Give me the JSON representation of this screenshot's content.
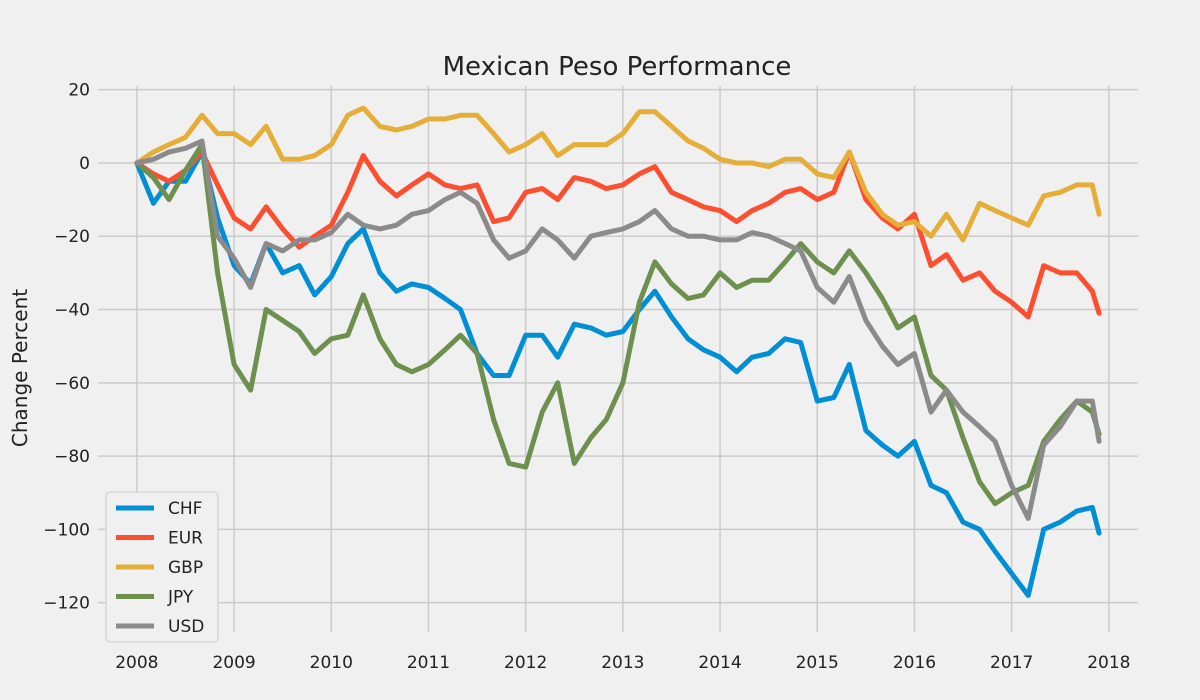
{
  "chart_data": {
    "type": "line",
    "title": "Mexican Peso Performance",
    "xlabel": "",
    "ylabel": "Change Percent",
    "xlim": [
      2007.6,
      2018.3
    ],
    "ylim": [
      -128,
      21
    ],
    "x_ticks": [
      2008,
      2009,
      2010,
      2011,
      2012,
      2013,
      2014,
      2015,
      2016,
      2017,
      2018
    ],
    "y_ticks": [
      20,
      0,
      -20,
      -40,
      -60,
      -80,
      -100,
      -120
    ],
    "grid": true,
    "legend_position": "lower-left",
    "series": [
      {
        "name": "CHF",
        "color": "#008fd5",
        "x": [
          2008.0,
          2008.17,
          2008.33,
          2008.5,
          2008.67,
          2008.83,
          2009.0,
          2009.17,
          2009.33,
          2009.5,
          2009.67,
          2009.83,
          2010.0,
          2010.17,
          2010.33,
          2010.5,
          2010.67,
          2010.83,
          2011.0,
          2011.17,
          2011.33,
          2011.5,
          2011.67,
          2011.83,
          2012.0,
          2012.17,
          2012.33,
          2012.5,
          2012.67,
          2012.83,
          2013.0,
          2013.17,
          2013.33,
          2013.5,
          2013.67,
          2013.83,
          2014.0,
          2014.17,
          2014.33,
          2014.5,
          2014.67,
          2014.83,
          2015.0,
          2015.17,
          2015.33,
          2015.5,
          2015.67,
          2015.83,
          2016.0,
          2016.17,
          2016.33,
          2016.5,
          2016.67,
          2016.83,
          2017.0,
          2017.17,
          2017.33,
          2017.5,
          2017.67,
          2017.83,
          2017.9
        ],
        "values": [
          0,
          -11,
          -5,
          -5,
          3,
          -15,
          -28,
          -33,
          -22,
          -30,
          -28,
          -36,
          -31,
          -22,
          -18,
          -30,
          -35,
          -33,
          -34,
          -37,
          -40,
          -52,
          -58,
          -58,
          -47,
          -47,
          -53,
          -44,
          -45,
          -47,
          -46,
          -40,
          -35,
          -42,
          -48,
          -51,
          -53,
          -57,
          -53,
          -52,
          -48,
          -49,
          -65,
          -64,
          -55,
          -73,
          -77,
          -80,
          -76,
          -88,
          -90,
          -98,
          -100,
          -106,
          -112,
          -118,
          -100,
          -98,
          -95,
          -94,
          -101
        ]
      },
      {
        "name": "EUR",
        "color": "#fc4f30",
        "x": [
          2008.0,
          2008.17,
          2008.33,
          2008.5,
          2008.67,
          2008.83,
          2009.0,
          2009.17,
          2009.33,
          2009.5,
          2009.67,
          2009.83,
          2010.0,
          2010.17,
          2010.33,
          2010.5,
          2010.67,
          2010.83,
          2011.0,
          2011.17,
          2011.33,
          2011.5,
          2011.67,
          2011.83,
          2012.0,
          2012.17,
          2012.33,
          2012.5,
          2012.67,
          2012.83,
          2013.0,
          2013.17,
          2013.33,
          2013.5,
          2013.67,
          2013.83,
          2014.0,
          2014.17,
          2014.33,
          2014.5,
          2014.67,
          2014.83,
          2015.0,
          2015.17,
          2015.33,
          2015.5,
          2015.67,
          2015.83,
          2016.0,
          2016.17,
          2016.33,
          2016.5,
          2016.67,
          2016.83,
          2017.0,
          2017.17,
          2017.33,
          2017.5,
          2017.67,
          2017.83,
          2017.9
        ],
        "values": [
          0,
          -3,
          -5,
          -2,
          3,
          -6,
          -15,
          -18,
          -12,
          -18,
          -23,
          -20,
          -17,
          -8,
          2,
          -5,
          -9,
          -6,
          -3,
          -6,
          -7,
          -6,
          -16,
          -15,
          -8,
          -7,
          -10,
          -4,
          -5,
          -7,
          -6,
          -3,
          -1,
          -8,
          -10,
          -12,
          -13,
          -16,
          -13,
          -11,
          -8,
          -7,
          -10,
          -8,
          3,
          -10,
          -15,
          -18,
          -14,
          -28,
          -25,
          -32,
          -30,
          -35,
          -38,
          -42,
          -28,
          -30,
          -30,
          -35,
          -41
        ]
      },
      {
        "name": "GBP",
        "color": "#e5ae38",
        "x": [
          2008.0,
          2008.17,
          2008.33,
          2008.5,
          2008.67,
          2008.83,
          2009.0,
          2009.17,
          2009.33,
          2009.5,
          2009.67,
          2009.83,
          2010.0,
          2010.17,
          2010.33,
          2010.5,
          2010.67,
          2010.83,
          2011.0,
          2011.17,
          2011.33,
          2011.5,
          2011.67,
          2011.83,
          2012.0,
          2012.17,
          2012.33,
          2012.5,
          2012.67,
          2012.83,
          2013.0,
          2013.17,
          2013.33,
          2013.5,
          2013.67,
          2013.83,
          2014.0,
          2014.17,
          2014.33,
          2014.5,
          2014.67,
          2014.83,
          2015.0,
          2015.17,
          2015.33,
          2015.5,
          2015.67,
          2015.83,
          2016.0,
          2016.17,
          2016.33,
          2016.5,
          2016.67,
          2016.83,
          2017.0,
          2017.17,
          2017.33,
          2017.5,
          2017.67,
          2017.83,
          2017.9
        ],
        "values": [
          0,
          3,
          5,
          7,
          13,
          8,
          8,
          5,
          10,
          1,
          1,
          2,
          5,
          13,
          15,
          10,
          9,
          10,
          12,
          12,
          13,
          13,
          8,
          3,
          5,
          8,
          2,
          5,
          5,
          5,
          8,
          14,
          14,
          10,
          6,
          4,
          1,
          0,
          0,
          -1,
          1,
          1,
          -3,
          -4,
          3,
          -8,
          -14,
          -17,
          -16,
          -20,
          -14,
          -21,
          -11,
          -13,
          -15,
          -17,
          -9,
          -8,
          -6,
          -6,
          -14
        ]
      },
      {
        "name": "JPY",
        "color": "#6d904f",
        "x": [
          2008.0,
          2008.17,
          2008.33,
          2008.5,
          2008.67,
          2008.83,
          2009.0,
          2009.17,
          2009.33,
          2009.5,
          2009.67,
          2009.83,
          2010.0,
          2010.17,
          2010.33,
          2010.5,
          2010.67,
          2010.83,
          2011.0,
          2011.17,
          2011.33,
          2011.5,
          2011.67,
          2011.83,
          2012.0,
          2012.17,
          2012.33,
          2012.5,
          2012.67,
          2012.83,
          2013.0,
          2013.17,
          2013.33,
          2013.5,
          2013.67,
          2013.83,
          2014.0,
          2014.17,
          2014.33,
          2014.5,
          2014.67,
          2014.83,
          2015.0,
          2015.17,
          2015.33,
          2015.5,
          2015.67,
          2015.83,
          2016.0,
          2016.17,
          2016.33,
          2016.5,
          2016.67,
          2016.83,
          2017.0,
          2017.17,
          2017.33,
          2017.5,
          2017.67,
          2017.83,
          2017.9
        ],
        "values": [
          0,
          -4,
          -10,
          -2,
          5,
          -30,
          -55,
          -62,
          -40,
          -43,
          -46,
          -52,
          -48,
          -47,
          -36,
          -48,
          -55,
          -57,
          -55,
          -51,
          -47,
          -52,
          -70,
          -82,
          -83,
          -68,
          -60,
          -82,
          -75,
          -70,
          -60,
          -38,
          -27,
          -33,
          -37,
          -36,
          -30,
          -34,
          -32,
          -32,
          -27,
          -22,
          -27,
          -30,
          -24,
          -30,
          -37,
          -45,
          -42,
          -58,
          -62,
          -75,
          -87,
          -93,
          -90,
          -88,
          -76,
          -70,
          -65,
          -68,
          -74
        ]
      },
      {
        "name": "USD",
        "color": "#8b8b8b",
        "x": [
          2008.0,
          2008.17,
          2008.33,
          2008.5,
          2008.67,
          2008.83,
          2009.0,
          2009.17,
          2009.33,
          2009.5,
          2009.67,
          2009.83,
          2010.0,
          2010.17,
          2010.33,
          2010.5,
          2010.67,
          2010.83,
          2011.0,
          2011.17,
          2011.33,
          2011.5,
          2011.67,
          2011.83,
          2012.0,
          2012.17,
          2012.33,
          2012.5,
          2012.67,
          2012.83,
          2013.0,
          2013.17,
          2013.33,
          2013.5,
          2013.67,
          2013.83,
          2014.0,
          2014.17,
          2014.33,
          2014.5,
          2014.67,
          2014.83,
          2015.0,
          2015.17,
          2015.33,
          2015.5,
          2015.67,
          2015.83,
          2016.0,
          2016.17,
          2016.33,
          2016.5,
          2016.67,
          2016.83,
          2017.0,
          2017.17,
          2017.33,
          2017.5,
          2017.67,
          2017.83,
          2017.9
        ],
        "values": [
          0,
          1,
          3,
          4,
          6,
          -20,
          -26,
          -34,
          -22,
          -24,
          -21,
          -21,
          -19,
          -14,
          -17,
          -18,
          -17,
          -14,
          -13,
          -10,
          -8,
          -11,
          -21,
          -26,
          -24,
          -18,
          -21,
          -26,
          -20,
          -19,
          -18,
          -16,
          -13,
          -18,
          -20,
          -20,
          -21,
          -21,
          -19,
          -20,
          -22,
          -24,
          -34,
          -38,
          -31,
          -43,
          -50,
          -55,
          -52,
          -68,
          -62,
          -68,
          -72,
          -76,
          -88,
          -97,
          -77,
          -72,
          -65,
          -65,
          -76
        ]
      }
    ]
  }
}
